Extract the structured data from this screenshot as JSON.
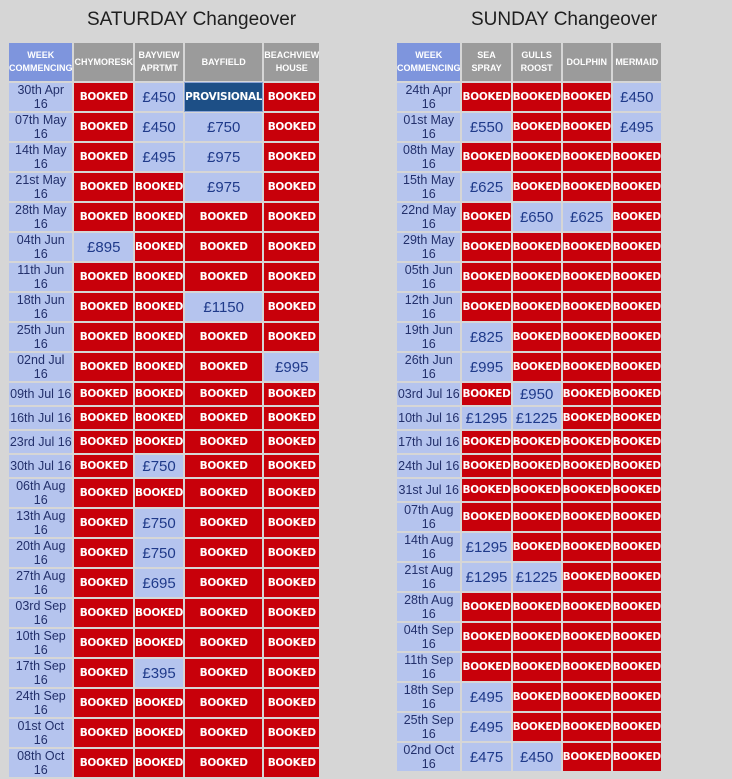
{
  "saturday": {
    "title": "SATURDAY Changeover",
    "headers": [
      "WEEK COMMENCING",
      "CHYMORESK",
      "BAYVIEW APRTMT",
      "BAYFIELD",
      "BEACHVIEW HOUSE"
    ],
    "rows": [
      [
        "30th Apr 16",
        "BOOKED",
        "£450",
        "PROVISIONAL",
        "BOOKED"
      ],
      [
        "07th May 16",
        "BOOKED",
        "£450",
        "£750",
        "BOOKED"
      ],
      [
        "14th May 16",
        "BOOKED",
        "£495",
        "£975",
        "BOOKED"
      ],
      [
        "21st May 16",
        "BOOKED",
        "BOOKED",
        "£975",
        "BOOKED"
      ],
      [
        "28th May 16",
        "BOOKED",
        "BOOKED",
        "BOOKED",
        "BOOKED"
      ],
      [
        "04th Jun 16",
        "£895",
        "BOOKED",
        "BOOKED",
        "BOOKED"
      ],
      [
        "11th Jun 16",
        "BOOKED",
        "BOOKED",
        "BOOKED",
        "BOOKED"
      ],
      [
        "18th Jun 16",
        "BOOKED",
        "BOOKED",
        "£1150",
        "BOOKED"
      ],
      [
        "25th Jun 16",
        "BOOKED",
        "BOOKED",
        "BOOKED",
        "BOOKED"
      ],
      [
        "02nd Jul 16",
        "BOOKED",
        "BOOKED",
        "BOOKED",
        "£995"
      ],
      [
        "09th Jul 16",
        "BOOKED",
        "BOOKED",
        "BOOKED",
        "BOOKED"
      ],
      [
        "16th Jul 16",
        "BOOKED",
        "BOOKED",
        "BOOKED",
        "BOOKED"
      ],
      [
        "23rd Jul 16",
        "BOOKED",
        "BOOKED",
        "BOOKED",
        "BOOKED"
      ],
      [
        "30th Jul 16",
        "BOOKED",
        "£750",
        "BOOKED",
        "BOOKED"
      ],
      [
        "06th Aug 16",
        "BOOKED",
        "BOOKED",
        "BOOKED",
        "BOOKED"
      ],
      [
        "13th Aug 16",
        "BOOKED",
        "£750",
        "BOOKED",
        "BOOKED"
      ],
      [
        "20th Aug 16",
        "BOOKED",
        "£750",
        "BOOKED",
        "BOOKED"
      ],
      [
        "27th Aug 16",
        "BOOKED",
        "£695",
        "BOOKED",
        "BOOKED"
      ],
      [
        "03rd Sep 16",
        "BOOKED",
        "BOOKED",
        "BOOKED",
        "BOOKED"
      ],
      [
        "10th Sep 16",
        "BOOKED",
        "BOOKED",
        "BOOKED",
        "BOOKED"
      ],
      [
        "17th Sep 16",
        "BOOKED",
        "£395",
        "BOOKED",
        "BOOKED"
      ],
      [
        "24th Sep 16",
        "BOOKED",
        "BOOKED",
        "BOOKED",
        "BOOKED"
      ],
      [
        "01st Oct 16",
        "BOOKED",
        "BOOKED",
        "BOOKED",
        "BOOKED"
      ],
      [
        "08th Oct 16",
        "BOOKED",
        "BOOKED",
        "BOOKED",
        "BOOKED"
      ]
    ]
  },
  "sunday": {
    "title": "SUNDAY Changeover",
    "headers": [
      "WEEK COMMENCING",
      "SEA SPRAY",
      "GULLS ROOST",
      "DOLPHIN",
      "MERMAID"
    ],
    "rows": [
      [
        "24th Apr 16",
        "BOOKED",
        "BOOKED",
        "BOOKED",
        "£450"
      ],
      [
        "01st May 16",
        "£550",
        "BOOKED",
        "BOOKED",
        "£495"
      ],
      [
        "08th May 16",
        "BOOKED",
        "BOOKED",
        "BOOKED",
        "BOOKED"
      ],
      [
        "15th May 16",
        "£625",
        "BOOKED",
        "BOOKED",
        "BOOKED"
      ],
      [
        "22nd May 16",
        "BOOKED",
        "£650",
        "£625",
        "BOOKED"
      ],
      [
        "29th May 16",
        "BOOKED",
        "BOOKED",
        "BOOKED",
        "BOOKED"
      ],
      [
        "05th Jun 16",
        "BOOKED",
        "BOOKED",
        "BOOKED",
        "BOOKED"
      ],
      [
        "12th Jun 16",
        "BOOKED",
        "BOOKED",
        "BOOKED",
        "BOOKED"
      ],
      [
        "19th Jun 16",
        "£825",
        "BOOKED",
        "BOOKED",
        "BOOKED"
      ],
      [
        "26th Jun 16",
        "£995",
        "BOOKED",
        "BOOKED",
        "BOOKED"
      ],
      [
        "03rd Jul 16",
        "BOOKED",
        "£950",
        "BOOKED",
        "BOOKED"
      ],
      [
        "10th Jul 16",
        "£1295",
        "£1225",
        "BOOKED",
        "BOOKED"
      ],
      [
        "17th Jul 16",
        "BOOKED",
        "BOOKED",
        "BOOKED",
        "BOOKED"
      ],
      [
        "24th Jul 16",
        "BOOKED",
        "BOOKED",
        "BOOKED",
        "BOOKED"
      ],
      [
        "31st Jul 16",
        "BOOKED",
        "BOOKED",
        "BOOKED",
        "BOOKED"
      ],
      [
        "07th Aug 16",
        "BOOKED",
        "BOOKED",
        "BOOKED",
        "BOOKED"
      ],
      [
        "14th Aug 16",
        "£1295",
        "BOOKED",
        "BOOKED",
        "BOOKED"
      ],
      [
        "21st Aug 16",
        "£1295",
        "£1225",
        "BOOKED",
        "BOOKED"
      ],
      [
        "28th Aug 16",
        "BOOKED",
        "BOOKED",
        "BOOKED",
        "BOOKED"
      ],
      [
        "04th Sep 16",
        "BOOKED",
        "BOOKED",
        "BOOKED",
        "BOOKED"
      ],
      [
        "11th Sep 16",
        "BOOKED",
        "BOOKED",
        "BOOKED",
        "BOOKED"
      ],
      [
        "18th Sep 16",
        "£495",
        "BOOKED",
        "BOOKED",
        "BOOKED"
      ],
      [
        "25th Sep 16",
        "£495",
        "BOOKED",
        "BOOKED",
        "BOOKED"
      ],
      [
        "02nd Oct 16",
        "£475",
        "£450",
        "BOOKED",
        "BOOKED"
      ]
    ]
  },
  "colors": {
    "booked": "#c8000a",
    "available": "#b5c4ee",
    "provisional": "#1d4f86",
    "week_header": "#7e95dd",
    "property_header": "#9b9b9b"
  }
}
